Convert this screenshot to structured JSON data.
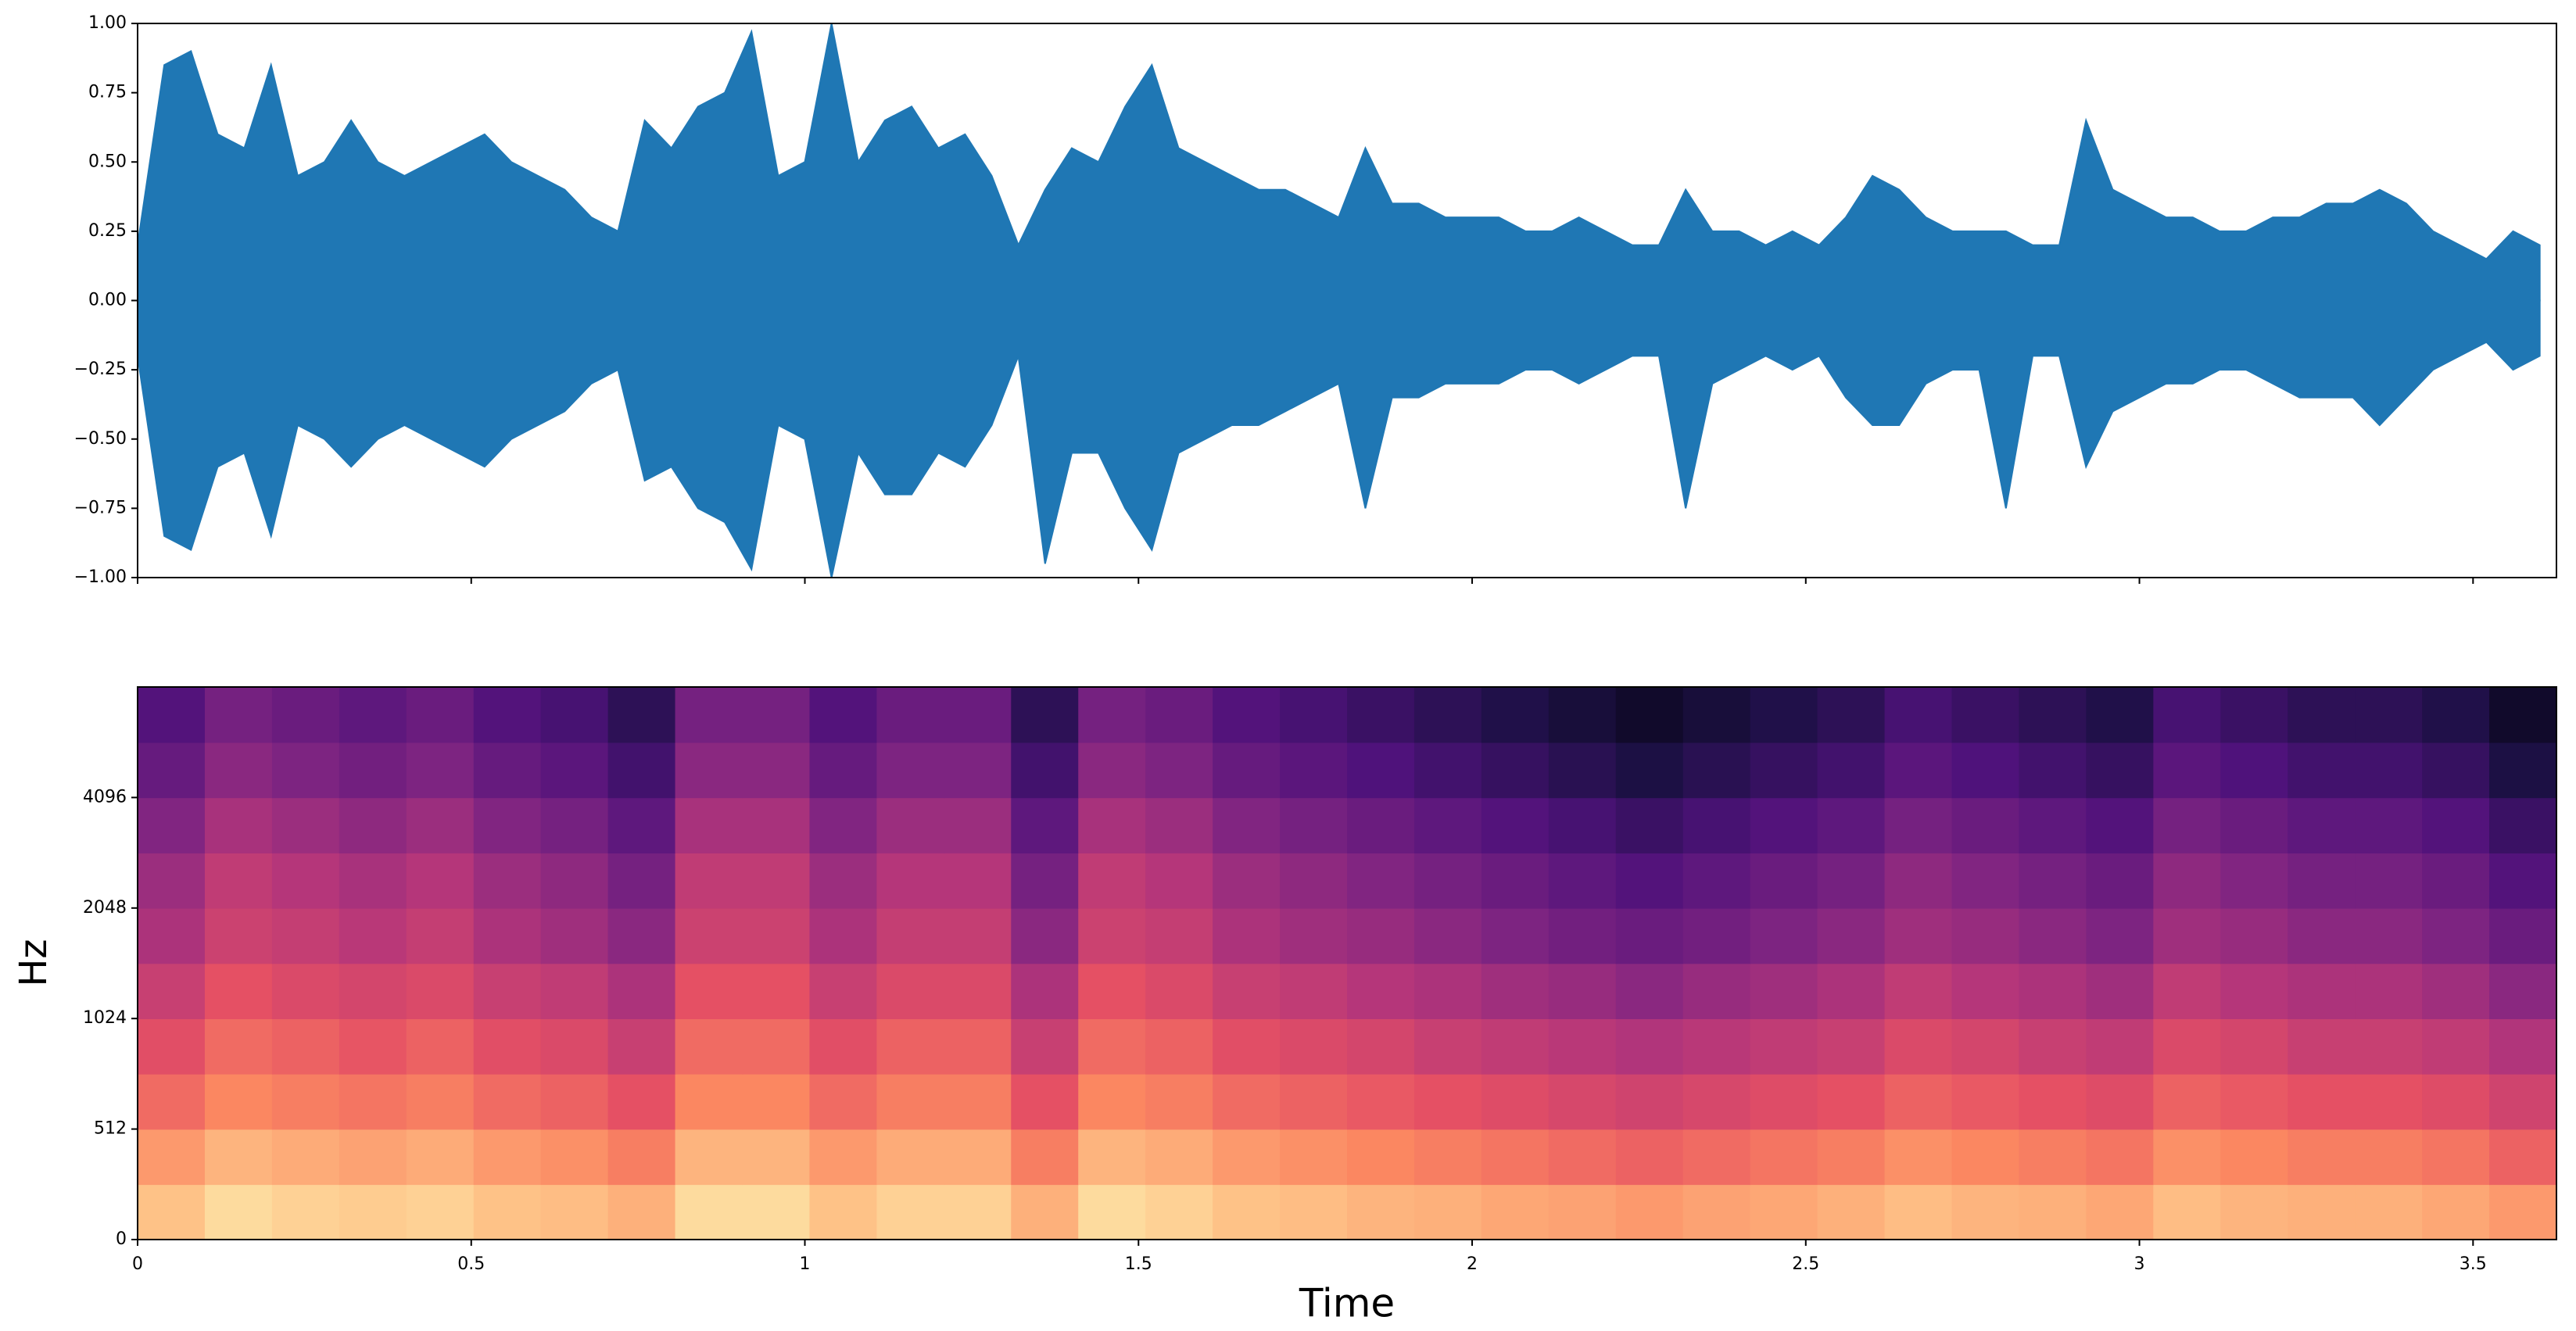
{
  "chart_data": [
    {
      "type": "waveform",
      "x": [
        0,
        0.04,
        0.08,
        0.12,
        0.16,
        0.2,
        0.24,
        0.28,
        0.32,
        0.36,
        0.4,
        0.44,
        0.48,
        0.52,
        0.56,
        0.6,
        0.64,
        0.68,
        0.72,
        0.76,
        0.8,
        0.84,
        0.88,
        0.92,
        0.96,
        1,
        1.04,
        1.08,
        1.12,
        1.16,
        1.2,
        1.24,
        1.28,
        1.32,
        1.36,
        1.4,
        1.44,
        1.48,
        1.52,
        1.56,
        1.6,
        1.64,
        1.68,
        1.72,
        1.76,
        1.8,
        1.84,
        1.88,
        1.92,
        1.96,
        2,
        2.04,
        2.08,
        2.12,
        2.16,
        2.2,
        2.24,
        2.28,
        2.32,
        2.36,
        2.4,
        2.44,
        2.48,
        2.52,
        2.56,
        2.6,
        2.64,
        2.68,
        2.72,
        2.76,
        2.8,
        2.84,
        2.88,
        2.92,
        2.96,
        3,
        3.04,
        3.08,
        3.12,
        3.16,
        3.2,
        3.24,
        3.28,
        3.32,
        3.36,
        3.4,
        3.44,
        3.48,
        3.52,
        3.56,
        3.6
      ],
      "series": [
        {
          "color": "#1f77b4",
          "values": [
            0.2,
            0.85,
            0.9,
            0.6,
            0.55,
            0.85,
            0.45,
            0.5,
            0.65,
            0.5,
            0.45,
            0.5,
            0.55,
            0.6,
            0.5,
            0.45,
            0.4,
            0.3,
            0.25,
            0.65,
            0.55,
            0.7,
            0.75,
            0.97,
            0.45,
            0.5,
            1.0,
            0.5,
            0.65,
            0.7,
            0.55,
            0.6,
            0.45,
            0.2,
            0.4,
            0.55,
            0.5,
            0.7,
            0.85,
            0.55,
            0.5,
            0.45,
            0.4,
            0.4,
            0.35,
            0.3,
            0.55,
            0.35,
            0.35,
            0.3,
            0.3,
            0.3,
            0.25,
            0.25,
            0.3,
            0.25,
            0.2,
            0.2,
            0.4,
            0.25,
            0.25,
            0.2,
            0.25,
            0.2,
            0.3,
            0.45,
            0.4,
            0.3,
            0.25,
            0.25,
            0.25,
            0.2,
            0.2,
            0.65,
            0.4,
            0.35,
            0.3,
            0.3,
            0.25,
            0.25,
            0.3,
            0.3,
            0.35,
            0.35,
            0.4,
            0.35,
            0.25,
            0.2,
            0.15,
            0.25,
            0.2
          ]
        },
        {
          "color": "#1f77b4",
          "values": [
            -0.2,
            -0.85,
            -0.9,
            -0.6,
            -0.55,
            -0.85,
            -0.45,
            -0.5,
            -0.6,
            -0.5,
            -0.45,
            -0.5,
            -0.55,
            -0.6,
            -0.5,
            -0.45,
            -0.4,
            -0.3,
            -0.25,
            -0.65,
            -0.6,
            -0.75,
            -0.8,
            -0.97,
            -0.45,
            -0.5,
            -1.0,
            -0.55,
            -0.7,
            -0.7,
            -0.55,
            -0.6,
            -0.45,
            -0.2,
            -0.95,
            -0.55,
            -0.55,
            -0.75,
            -0.9,
            -0.55,
            -0.5,
            -0.45,
            -0.45,
            -0.4,
            -0.35,
            -0.3,
            -0.75,
            -0.35,
            -0.35,
            -0.3,
            -0.3,
            -0.3,
            -0.25,
            -0.25,
            -0.3,
            -0.25,
            -0.2,
            -0.2,
            -0.75,
            -0.3,
            -0.25,
            -0.2,
            -0.25,
            -0.2,
            -0.35,
            -0.45,
            -0.45,
            -0.3,
            -0.25,
            -0.25,
            -0.75,
            -0.2,
            -0.2,
            -0.6,
            -0.4,
            -0.35,
            -0.3,
            -0.3,
            -0.25,
            -0.25,
            -0.3,
            -0.35,
            -0.35,
            -0.35,
            -0.45,
            -0.35,
            -0.25,
            -0.2,
            -0.15,
            -0.25,
            -0.2
          ]
        }
      ],
      "xlim": [
        0,
        3.625
      ],
      "xticks": [
        0,
        0.5,
        1,
        1.5,
        2,
        2.5,
        3,
        3.5
      ],
      "ylim": [
        -1,
        1
      ],
      "yticks": [
        {
          "value": -1,
          "label": "−1.00"
        },
        {
          "value": -0.75,
          "label": "−0.75"
        },
        {
          "value": -0.5,
          "label": "−0.50"
        },
        {
          "value": -0.25,
          "label": "−0.25"
        },
        {
          "value": 0,
          "label": "0.00"
        },
        {
          "value": 0.25,
          "label": "0.25"
        },
        {
          "value": 0.5,
          "label": "0.50"
        },
        {
          "value": 0.75,
          "label": "0.75"
        },
        {
          "value": 1,
          "label": "1.00"
        }
      ]
    },
    {
      "type": "heatmap",
      "colormap": "magma",
      "xlabel": "Time",
      "ylabel": "Hz",
      "xlim": [
        0,
        3.625
      ],
      "xticks": [
        0,
        0.5,
        1,
        1.5,
        2,
        2.5,
        3,
        3.5
      ],
      "ylim": [
        0,
        8192
      ],
      "yscale": "symlog",
      "linthresh": 512,
      "yticks": [
        0,
        512,
        1024,
        2048,
        4096
      ],
      "values": [
        [
          0.88,
          0.93,
          0.91,
          0.9,
          0.91,
          0.88,
          0.87,
          0.84,
          0.93,
          0.93,
          0.88,
          0.91,
          0.91,
          0.84,
          0.93,
          0.91,
          0.88,
          0.87,
          0.85,
          0.84,
          0.82,
          0.81,
          0.79,
          0.81,
          0.82,
          0.84,
          0.87,
          0.85,
          0.84,
          0.82,
          0.87,
          0.85,
          0.84,
          0.84,
          0.82,
          0.79
        ],
        [
          0.79,
          0.85,
          0.83,
          0.81,
          0.83,
          0.79,
          0.77,
          0.73,
          0.85,
          0.85,
          0.79,
          0.83,
          0.83,
          0.73,
          0.85,
          0.83,
          0.79,
          0.77,
          0.75,
          0.73,
          0.71,
          0.69,
          0.67,
          0.69,
          0.71,
          0.73,
          0.77,
          0.75,
          0.73,
          0.71,
          0.77,
          0.75,
          0.73,
          0.73,
          0.71,
          0.67
        ],
        [
          0.69,
          0.75,
          0.73,
          0.71,
          0.73,
          0.69,
          0.67,
          0.63,
          0.75,
          0.75,
          0.69,
          0.73,
          0.73,
          0.63,
          0.75,
          0.73,
          0.69,
          0.67,
          0.65,
          0.63,
          0.61,
          0.59,
          0.57,
          0.59,
          0.61,
          0.63,
          0.67,
          0.65,
          0.63,
          0.61,
          0.67,
          0.65,
          0.63,
          0.63,
          0.61,
          0.57
        ],
        [
          0.62,
          0.69,
          0.67,
          0.64,
          0.67,
          0.62,
          0.6,
          0.55,
          0.69,
          0.69,
          0.62,
          0.67,
          0.67,
          0.55,
          0.69,
          0.67,
          0.62,
          0.6,
          0.58,
          0.55,
          0.53,
          0.51,
          0.49,
          0.51,
          0.53,
          0.55,
          0.6,
          0.58,
          0.55,
          0.53,
          0.6,
          0.58,
          0.55,
          0.55,
          0.53,
          0.49
        ],
        [
          0.55,
          0.63,
          0.6,
          0.58,
          0.6,
          0.55,
          0.53,
          0.48,
          0.63,
          0.63,
          0.55,
          0.6,
          0.6,
          0.48,
          0.63,
          0.6,
          0.55,
          0.53,
          0.5,
          0.48,
          0.45,
          0.43,
          0.4,
          0.43,
          0.45,
          0.48,
          0.53,
          0.5,
          0.48,
          0.45,
          0.53,
          0.5,
          0.48,
          0.48,
          0.45,
          0.4
        ],
        [
          0.48,
          0.56,
          0.54,
          0.51,
          0.54,
          0.48,
          0.45,
          0.4,
          0.56,
          0.56,
          0.48,
          0.54,
          0.54,
          0.4,
          0.56,
          0.54,
          0.48,
          0.45,
          0.43,
          0.4,
          0.37,
          0.34,
          0.32,
          0.34,
          0.37,
          0.4,
          0.45,
          0.43,
          0.4,
          0.37,
          0.45,
          0.43,
          0.4,
          0.4,
          0.37,
          0.32
        ],
        [
          0.44,
          0.53,
          0.5,
          0.47,
          0.5,
          0.44,
          0.41,
          0.35,
          0.53,
          0.53,
          0.44,
          0.5,
          0.5,
          0.35,
          0.53,
          0.5,
          0.44,
          0.41,
          0.38,
          0.35,
          0.32,
          0.29,
          0.26,
          0.29,
          0.32,
          0.35,
          0.41,
          0.38,
          0.35,
          0.32,
          0.41,
          0.38,
          0.35,
          0.35,
          0.32,
          0.26
        ],
        [
          0.38,
          0.47,
          0.44,
          0.41,
          0.44,
          0.38,
          0.35,
          0.29,
          0.47,
          0.47,
          0.38,
          0.44,
          0.44,
          0.29,
          0.47,
          0.44,
          0.38,
          0.35,
          0.32,
          0.29,
          0.26,
          0.23,
          0.2,
          0.23,
          0.26,
          0.29,
          0.35,
          0.32,
          0.29,
          0.26,
          0.35,
          0.32,
          0.29,
          0.29,
          0.26,
          0.2
        ],
        [
          0.31,
          0.4,
          0.37,
          0.34,
          0.37,
          0.31,
          0.28,
          0.22,
          0.4,
          0.4,
          0.31,
          0.37,
          0.37,
          0.22,
          0.4,
          0.37,
          0.31,
          0.28,
          0.25,
          0.22,
          0.19,
          0.16,
          0.13,
          0.16,
          0.19,
          0.22,
          0.28,
          0.25,
          0.22,
          0.19,
          0.28,
          0.25,
          0.22,
          0.22,
          0.19,
          0.13
        ],
        [
          0.26,
          0.35,
          0.32,
          0.29,
          0.32,
          0.26,
          0.23,
          0.17,
          0.35,
          0.35,
          0.26,
          0.32,
          0.32,
          0.17,
          0.35,
          0.32,
          0.26,
          0.23,
          0.2,
          0.17,
          0.14,
          0.11,
          0.08,
          0.11,
          0.14,
          0.17,
          0.23,
          0.2,
          0.17,
          0.14,
          0.23,
          0.2,
          0.17,
          0.17,
          0.14,
          0.08
        ]
      ]
    }
  ]
}
